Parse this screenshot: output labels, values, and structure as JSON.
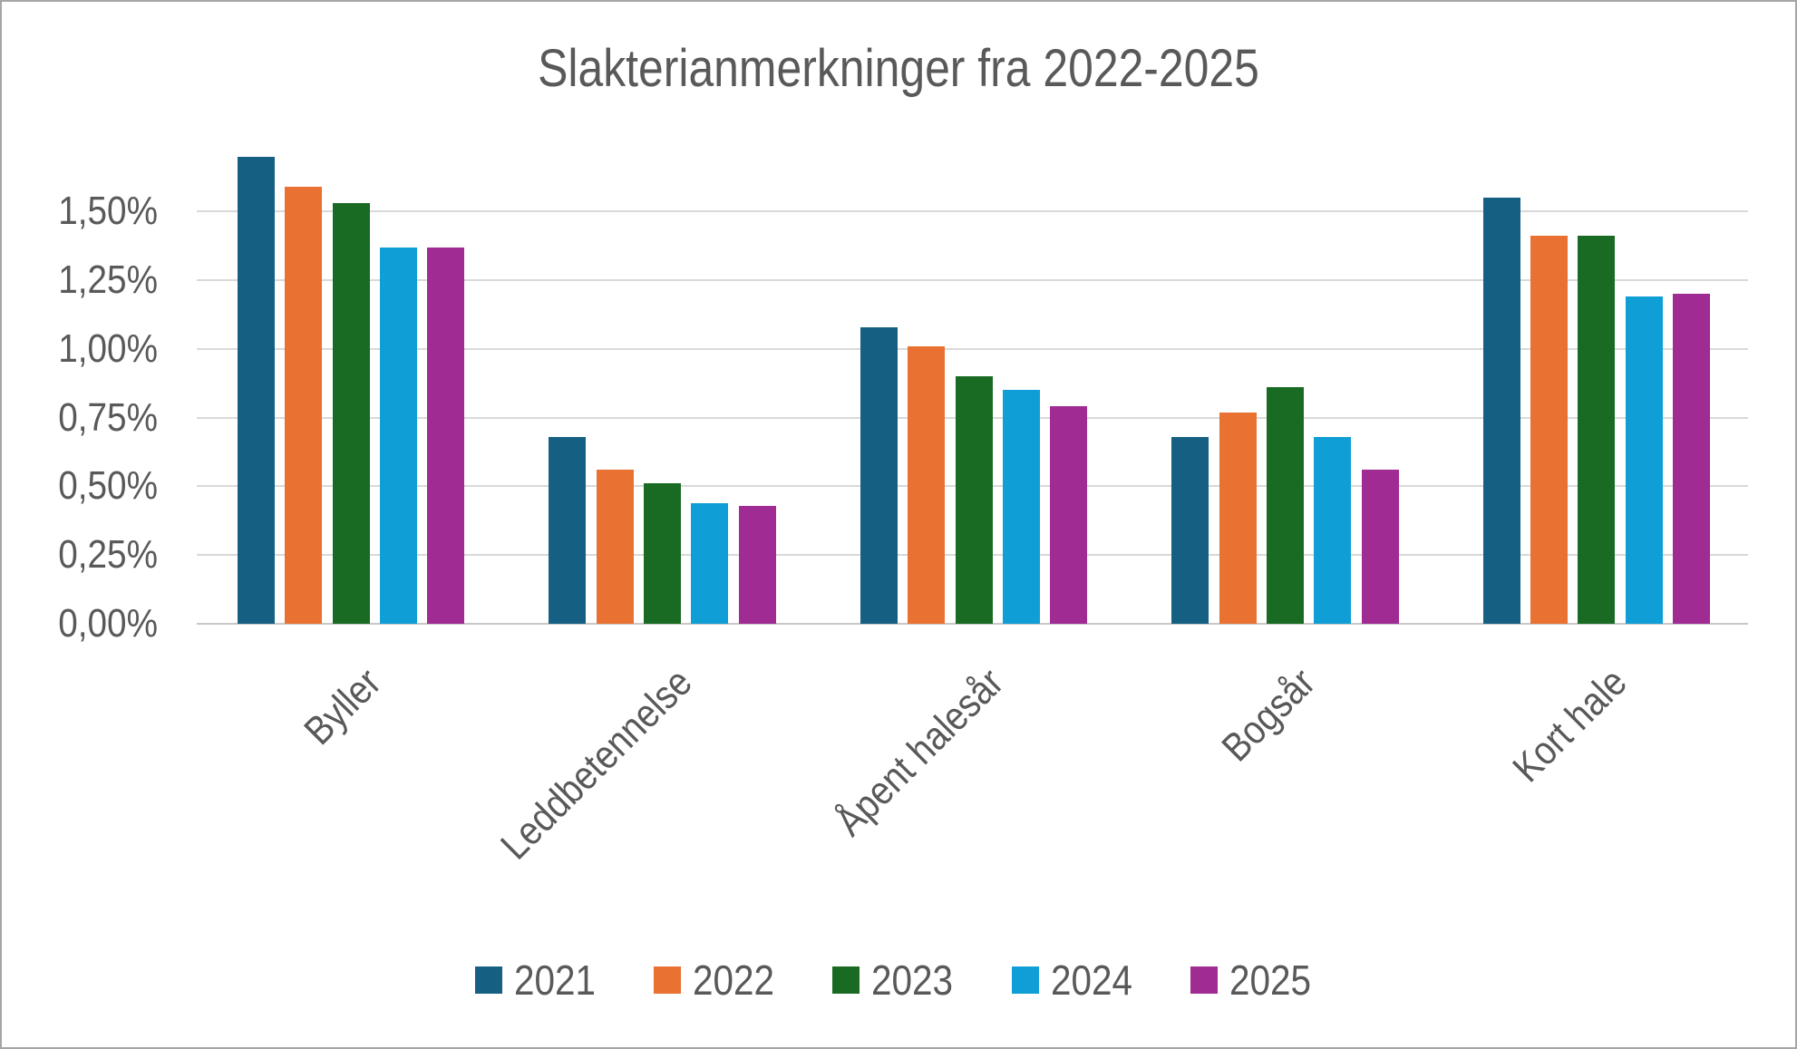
{
  "title": "Slakterianmerkninger fra 2022-2025",
  "colors": {
    "text_gray": "#595959",
    "gridline": "#d9d9d9",
    "axis_line": "#c9c7c7",
    "canvas_border": "#a6a6a6",
    "background": "#ffffff"
  },
  "chart_data": {
    "type": "bar",
    "title": "Slakterianmerkninger fra 2022-2025",
    "categories": [
      "Byller",
      "Leddbetennelse",
      "Åpent halesår",
      "Bogsår",
      "Kort hale"
    ],
    "series": [
      {
        "name": "2021",
        "color": "#156082",
        "values": [
          1.7,
          0.68,
          1.08,
          0.68,
          1.55
        ]
      },
      {
        "name": "2022",
        "color": "#E97132",
        "values": [
          1.59,
          0.56,
          1.01,
          0.77,
          1.41
        ]
      },
      {
        "name": "2023",
        "color": "#196B24",
        "values": [
          1.53,
          0.51,
          0.9,
          0.86,
          1.41
        ]
      },
      {
        "name": "2024",
        "color": "#0F9ED5",
        "values": [
          1.37,
          0.44,
          0.85,
          0.68,
          1.19
        ]
      },
      {
        "name": "2025",
        "color": "#A02B93",
        "values": [
          1.37,
          0.43,
          0.79,
          0.56,
          1.2
        ]
      }
    ],
    "xlabel": "",
    "ylabel": "",
    "y_ticks": [
      {
        "value": 0.0,
        "label": "0,00%"
      },
      {
        "value": 0.25,
        "label": "0,25%"
      },
      {
        "value": 0.5,
        "label": "0,50%"
      },
      {
        "value": 0.75,
        "label": "0,75%"
      },
      {
        "value": 1.0,
        "label": "1,00%"
      },
      {
        "value": 1.25,
        "label": "1,25%"
      },
      {
        "value": 1.5,
        "label": "1,50%"
      }
    ],
    "ylim": [
      0,
      1.75
    ],
    "value_format": "percent, comma decimal separator",
    "grid": "horizontal",
    "legend_position": "bottom",
    "x_label_rotation_deg": 45
  }
}
